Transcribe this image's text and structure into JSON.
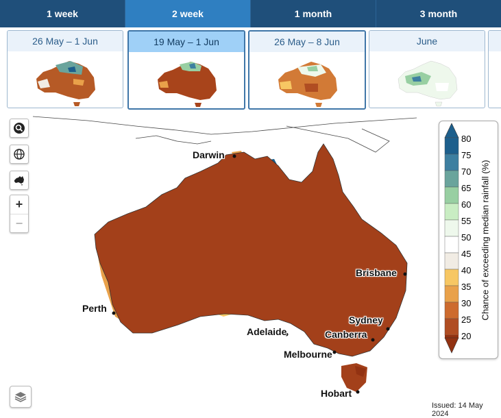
{
  "tabs": [
    {
      "label": "1 week",
      "active": false
    },
    {
      "label": "2 week",
      "active": true
    },
    {
      "label": "1 month",
      "active": false
    },
    {
      "label": "3 month",
      "active": false
    }
  ],
  "thumbnails": [
    {
      "label": "26 May – 1 Jun"
    },
    {
      "label": "19 May – 1 Jun"
    },
    {
      "label": "26 May – 8 Jun"
    },
    {
      "label": "June"
    }
  ],
  "map": {
    "cities": [
      "Darwin",
      "Brisbane",
      "Perth",
      "Sydney",
      "Adelaide",
      "Canberra",
      "Melbourne",
      "Hobart"
    ],
    "issued": "Issued: 14 May 2024"
  },
  "legend": {
    "title": "Chance of exceeding median rainfall (%)",
    "ticks": [
      "80",
      "75",
      "70",
      "65",
      "60",
      "55",
      "50",
      "45",
      "40",
      "35",
      "30",
      "25",
      "20"
    ],
    "colors": [
      "#1d5f8c",
      "#3d7fa0",
      "#6aa49c",
      "#98cfa2",
      "#c9edc3",
      "#eef8ec",
      "#ffffff",
      "#f1ece4",
      "#f7c763",
      "#e9a14a",
      "#cd6b2e",
      "#b04d22",
      "#923212"
    ]
  },
  "controls": {
    "search": "search-icon",
    "globe": "globe-icon",
    "australia": "australia-icon",
    "zoom_in": "+",
    "zoom_out": "−",
    "layers": "layers-icon"
  }
}
